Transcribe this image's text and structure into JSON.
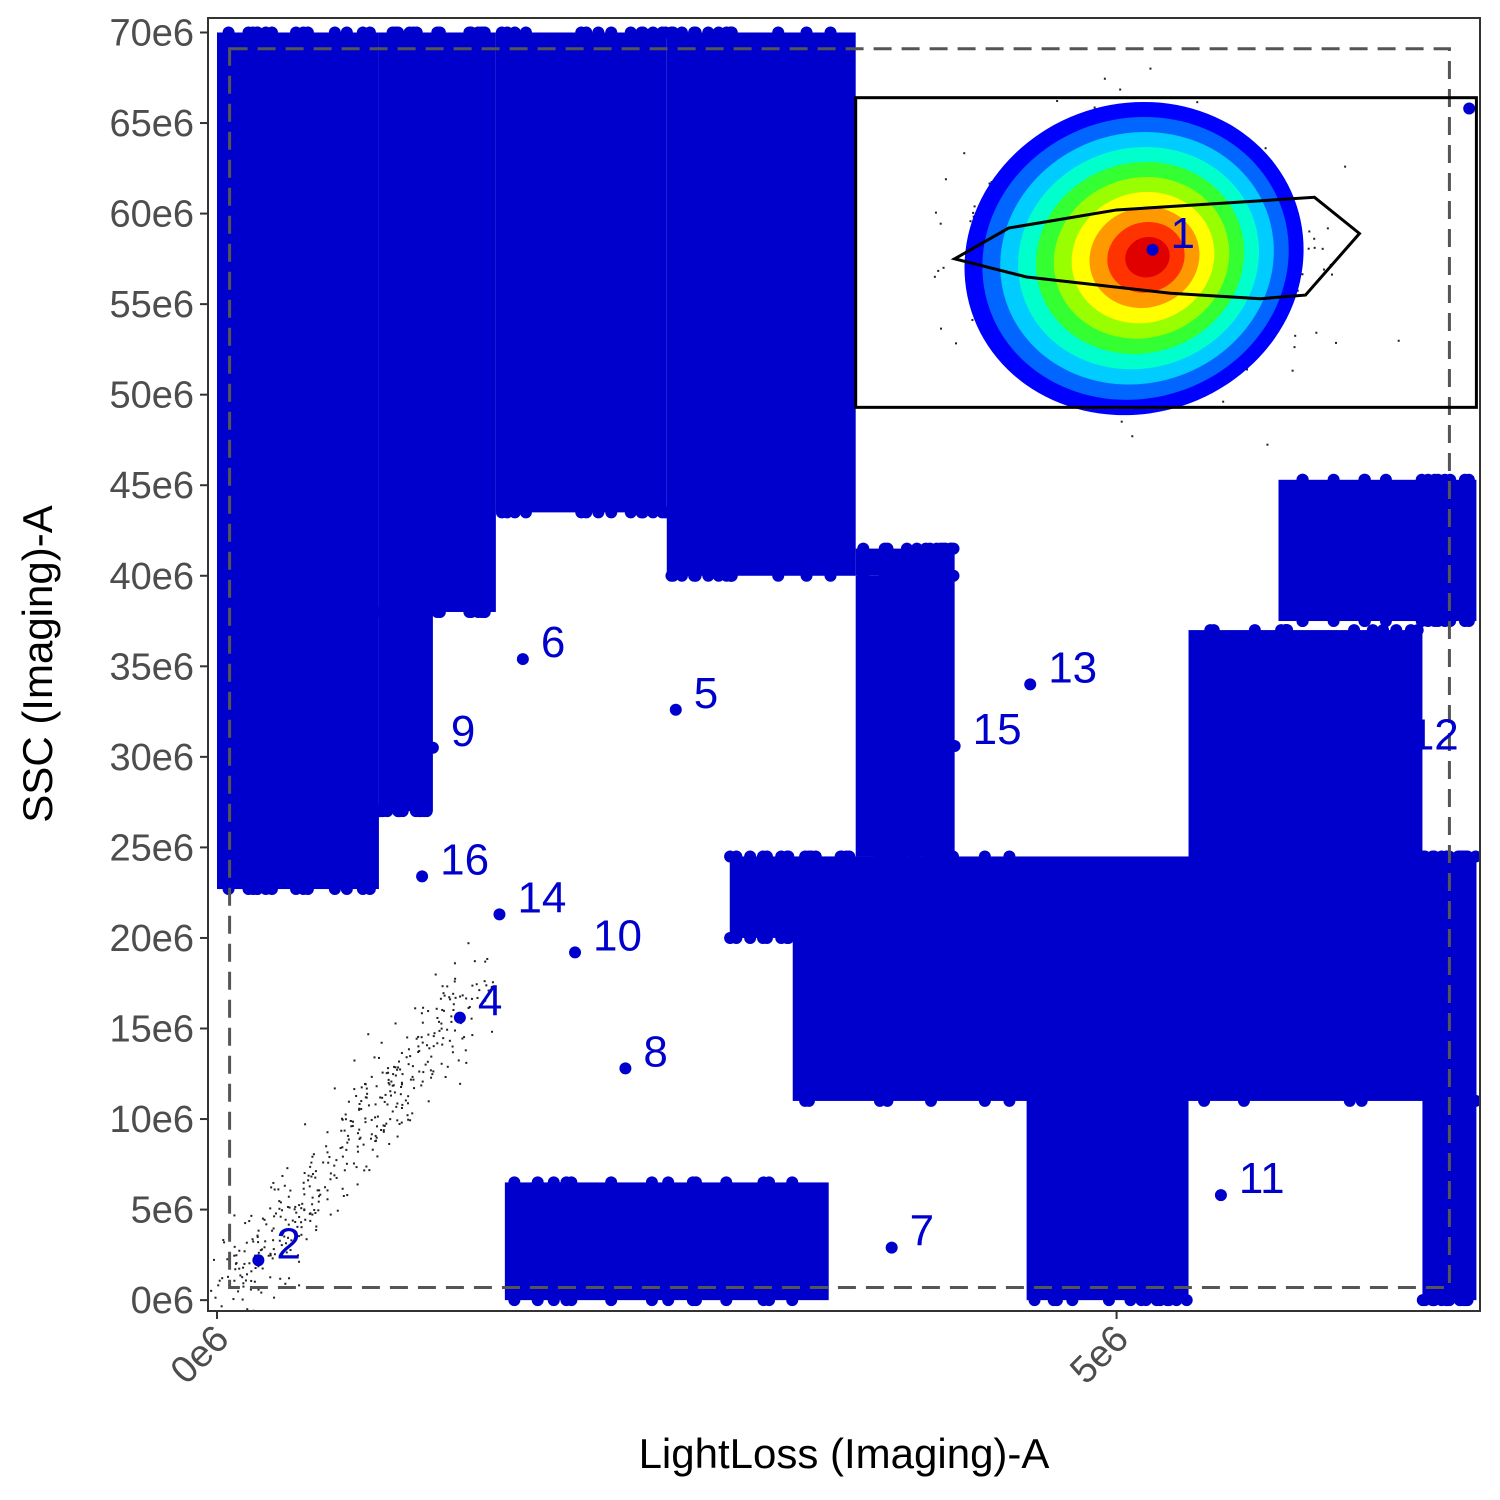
{
  "chart_data": {
    "type": "scatter",
    "xlabel": "LightLoss (Imaging)-A",
    "ylabel": "SSC (Imaging)-A",
    "xlim": [
      -50000.0,
      7020000.0
    ],
    "ylim": [
      -600000.0,
      70800000.0
    ],
    "x_ticks": [
      0,
      5000000
    ],
    "x_tick_labels": [
      "0e6",
      "5e6"
    ],
    "y_ticks": [
      0,
      5000000,
      10000000,
      15000000,
      20000000,
      25000000,
      30000000,
      35000000,
      40000000,
      45000000,
      50000000,
      55000000,
      60000000,
      65000000,
      70000000
    ],
    "y_tick_labels": [
      "0e6",
      "5e6",
      "10e6",
      "15e6",
      "20e6",
      "25e6",
      "30e6",
      "35e6",
      "40e6",
      "45e6",
      "50e6",
      "55e6",
      "60e6",
      "65e6",
      "70e6"
    ],
    "grid": false,
    "legend": "none",
    "colors": {
      "points": "#0000CD",
      "gate": "#000000",
      "dashed_gate": "#555555",
      "density": [
        "#0000FF",
        "#0066FF",
        "#00CCFF",
        "#00FFCC",
        "#33FF33",
        "#99FF00",
        "#FFFF00",
        "#FF9900",
        "#FF3300",
        "#E00000"
      ]
    },
    "labeled_points": [
      {
        "label": "1",
        "x": 5200000,
        "y": 58000000
      },
      {
        "label": "2",
        "x": 230000,
        "y": 2200000
      },
      {
        "label": "4",
        "x": 1350000,
        "y": 15600000
      },
      {
        "label": "5",
        "x": 2550000,
        "y": 32600000
      },
      {
        "label": "6",
        "x": 1700000,
        "y": 35400000
      },
      {
        "label": "7",
        "x": 3750000,
        "y": 2900000
      },
      {
        "label": "8",
        "x": 2270000,
        "y": 12800000
      },
      {
        "label": "9",
        "x": 1200000,
        "y": 30500000
      },
      {
        "label": "10",
        "x": 1990000,
        "y": 19200000
      },
      {
        "label": "11",
        "x": 5580000,
        "y": 5800000
      },
      {
        "label": "12",
        "x": 6530000,
        "y": 30300000
      },
      {
        "label": "13",
        "x": 4520000,
        "y": 34000000
      },
      {
        "label": "14",
        "x": 1570000,
        "y": 21300000
      },
      {
        "label": "15",
        "x": 4100000,
        "y": 30600000
      },
      {
        "label": "16",
        "x": 1140000,
        "y": 23400000
      },
      {
        "label": "",
        "x": 6960000,
        "y": 65800000
      }
    ],
    "dense_regions": [
      {
        "x0": 0,
        "x1": 900000.0,
        "y0": 22700000.0,
        "y1": 70000000.0
      },
      {
        "x0": 900000.0,
        "x1": 1550000.0,
        "y0": 38000000.0,
        "y1": 70000000.0
      },
      {
        "x0": 900000.0,
        "x1": 1200000.0,
        "y0": 27000000.0,
        "y1": 38000000.0
      },
      {
        "x0": 1550000.0,
        "x1": 2500000.0,
        "y0": 43500000.0,
        "y1": 70000000.0
      },
      {
        "x0": 2500000.0,
        "x1": 3550000.0,
        "y0": 40000000.0,
        "y1": 70000000.0
      },
      {
        "x0": 3550000.0,
        "x1": 4100000.0,
        "y0": 40000000.0,
        "y1": 41500000.0
      },
      {
        "x0": 3550000.0,
        "x1": 4100000.0,
        "y0": 24500000.0,
        "y1": 40000000.0
      },
      {
        "x0": 2850000.0,
        "x1": 3550000.0,
        "y0": 20000000.0,
        "y1": 24500000.0
      },
      {
        "x0": 3200000.0,
        "x1": 7000000.0,
        "y0": 11000000.0,
        "y1": 24500000.0
      },
      {
        "x0": 4500000.0,
        "x1": 5400000.0,
        "y0": 0,
        "y1": 13500000.0
      },
      {
        "x0": 6700000.0,
        "x1": 7000000.0,
        "y0": 0,
        "y1": 24500000.0
      },
      {
        "x0": 5400000.0,
        "x1": 6700000.0,
        "y0": 22000000.0,
        "y1": 37000000.0
      },
      {
        "x0": 5900000.0,
        "x1": 7000000.0,
        "y0": 37500000.0,
        "y1": 45300000.0
      },
      {
        "x0": 1600000.0,
        "x1": 3400000.0,
        "y0": 0,
        "y1": 6500000.0
      }
    ],
    "rect_gate": {
      "x0": 3550000.0,
      "x1": 7000000.0,
      "y0": 49300000.0,
      "y1": 66400000.0
    },
    "polygon_gate": [
      [
        4100000.0,
        57500000.0
      ],
      [
        4400000.0,
        59200000.0
      ],
      [
        5000000.0,
        60200000.0
      ],
      [
        6100000.0,
        60900000.0
      ],
      [
        6350000.0,
        58900000.0
      ],
      [
        6050000.0,
        55500000.0
      ],
      [
        5800000.0,
        55300000.0
      ],
      [
        5300000.0,
        55600000.0
      ],
      [
        4500000.0,
        56500000.0
      ],
      [
        4100000.0,
        57500000.0
      ]
    ],
    "dashed_gate": {
      "x0": 70000.0,
      "x1": 6850000.0,
      "y0": 700000.0,
      "y1": 69100000.0
    },
    "density_center": {
      "x": 5180000.0,
      "y": 57600000.0
    }
  }
}
